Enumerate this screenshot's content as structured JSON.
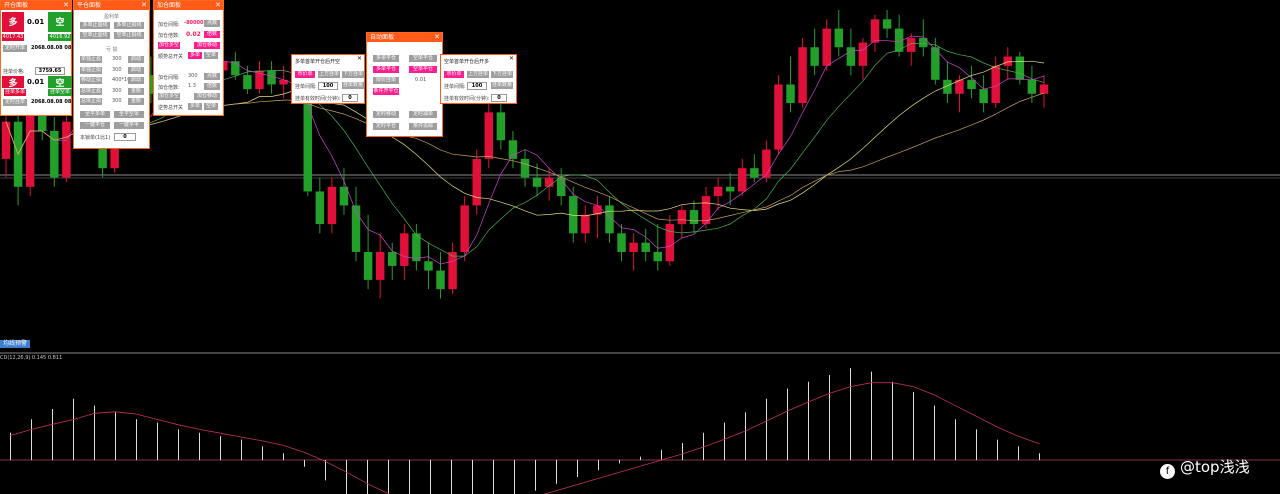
{
  "colors": {
    "up": "#e0103a",
    "down": "#22a02a",
    "accent": "#ff5a1a",
    "pink": "#ff1e8e",
    "gray": "#9e9e9e"
  },
  "panel1": {
    "title": "开仓面板",
    "buy_label": "多",
    "sell_label": "空",
    "lots": "0.01",
    "buy_price": "4017.43",
    "sell_price": "4016.92",
    "time_btn": "定时开单",
    "time_value": "2068.08.08 08:08",
    "price_label": "挂单价格:",
    "price_value": "3759.65",
    "buy2": "多",
    "sell2": "空",
    "lots2": "0.01",
    "pend_buy": "挂单多单",
    "pend_sell": "挂单空单",
    "time_btn2": "定时挂单",
    "time_value2": "2068.08.08 08:08"
  },
  "panel2": {
    "title": "平仓面板",
    "grp1": "盈利单",
    "r1": [
      "多单止盈线",
      "多单止损线"
    ],
    "r2": [
      "空单止盈线",
      "空单止损线"
    ],
    "grp2": "亏 损",
    "rows": [
      {
        "l": "单独止盈",
        "v": "300",
        "r": "启动"
      },
      {
        "l": "单独止损",
        "v": "300",
        "r": "启动"
      },
      {
        "l": "移动止损",
        "v": "400*100",
        "r": "启动"
      },
      {
        "l": "总体止盈",
        "v": "300",
        "r": "金额"
      },
      {
        "l": "总体止损",
        "v": "300",
        "r": "金额"
      }
    ],
    "close_buy": "全平多单",
    "close_sell": "全平空单",
    "close_all": "一键平仓",
    "close_half": "一键平半",
    "lock_label": "本锁单(1比1)",
    "lock_value": "0"
  },
  "panel3": {
    "title": "加仓面板",
    "rows": [
      {
        "l": "加仓间隔:",
        "v": "-80000",
        "r": "点数"
      },
      {
        "l": "加仓倍数:",
        "v": "0.02",
        "r": "倍数"
      }
    ],
    "add_btn": "加仓多空",
    "pause_btn": "加仓移动",
    "hedge_label": "顺势总开关",
    "long": "多单",
    "short": "空单",
    "rows2": [
      {
        "l": "加仓间隔:",
        "v": "300",
        "r": "点数"
      },
      {
        "l": "加仓倍数:",
        "v": "1.3",
        "r": "倍数"
      }
    ],
    "btn3": "加仓多空",
    "btn4": "加仓移动",
    "trend_label": "逆势总开关",
    "long2": "多单",
    "short2": "空单"
  },
  "panel4": {
    "title": "自动面板",
    "b1": "多单平仓",
    "b2": "空单平仓",
    "b3": "多单平仓",
    "b4": "空单平仓",
    "b5": "限价挂单",
    "v5": "0.01",
    "b6": "条件开平仓",
    "b7": "定时移动",
    "b8": "定时减单",
    "b9": "定时平仓",
    "b10": "条件追踪"
  },
  "panel5": {
    "title_row": "多单首单开仓后开空",
    "tabs": [
      "市价单",
      "上方挂单",
      "下方挂单"
    ],
    "gap_label": "挂单间隔:",
    "gap_value": "100",
    "gap_btn": "挂单数量",
    "time_label": "挂单有效时间(分钟):",
    "time_value": "0"
  },
  "panel6": {
    "title_row": "空单首单开仓后开多",
    "tabs": [
      "市价单",
      "上方挂单",
      "下方挂单"
    ],
    "gap_label": "挂单间隔:",
    "gap_value": "100",
    "gap_btn": "挂单数量",
    "time_label": "挂单有效时间(分钟):",
    "time_value": "0"
  },
  "status_tag": "均线预警",
  "indicator_label": "CD(12,26,9) 0.145 0.811",
  "watermark": "@top浅浅",
  "chart_data": {
    "type": "candlestick",
    "price_range": [
      3700,
      4060
    ],
    "candles": [
      [
        3900,
        3960,
        3880,
        3940
      ],
      [
        3940,
        3950,
        3850,
        3870
      ],
      [
        3870,
        3990,
        3860,
        3980
      ],
      [
        3980,
        3995,
        3920,
        3930
      ],
      [
        3930,
        3945,
        3870,
        3880
      ],
      [
        3880,
        3950,
        3875,
        3940
      ],
      [
        3940,
        3980,
        3930,
        3970
      ],
      [
        3970,
        3985,
        3925,
        3940
      ],
      [
        3940,
        3955,
        3880,
        3890
      ],
      [
        3890,
        3960,
        3885,
        3950
      ],
      [
        3950,
        3960,
        3920,
        3930
      ],
      [
        3930,
        4000,
        3925,
        3990
      ],
      [
        3990,
        4010,
        3960,
        3970
      ],
      [
        3970,
        3995,
        3950,
        3985
      ],
      [
        3985,
        4010,
        3970,
        4000
      ],
      [
        4000,
        4025,
        3990,
        4015
      ],
      [
        4015,
        4030,
        4000,
        4010
      ],
      [
        4010,
        4025,
        3990,
        3995
      ],
      [
        3995,
        4010,
        3975,
        4005
      ],
      [
        4005,
        4015,
        3985,
        3990
      ],
      [
        3990,
        4000,
        3970,
        3975
      ],
      [
        3975,
        4005,
        3970,
        3995
      ],
      [
        3995,
        4005,
        3970,
        3980
      ],
      [
        3980,
        4000,
        3965,
        3985
      ],
      [
        3985,
        3995,
        3960,
        3965
      ],
      [
        3965,
        3975,
        3860,
        3865
      ],
      [
        3865,
        3880,
        3820,
        3830
      ],
      [
        3830,
        3880,
        3820,
        3870
      ],
      [
        3870,
        3890,
        3840,
        3850
      ],
      [
        3850,
        3870,
        3790,
        3800
      ],
      [
        3800,
        3840,
        3760,
        3770
      ],
      [
        3770,
        3820,
        3750,
        3800
      ],
      [
        3800,
        3810,
        3770,
        3785
      ],
      [
        3785,
        3830,
        3770,
        3820
      ],
      [
        3820,
        3830,
        3780,
        3790
      ],
      [
        3790,
        3810,
        3760,
        3780
      ],
      [
        3780,
        3800,
        3750,
        3760
      ],
      [
        3760,
        3810,
        3755,
        3800
      ],
      [
        3800,
        3860,
        3790,
        3850
      ],
      [
        3850,
        3910,
        3840,
        3900
      ],
      [
        3900,
        3960,
        3890,
        3950
      ],
      [
        3950,
        3960,
        3910,
        3920
      ],
      [
        3920,
        3930,
        3890,
        3900
      ],
      [
        3900,
        3910,
        3870,
        3880
      ],
      [
        3880,
        3895,
        3860,
        3870
      ],
      [
        3870,
        3890,
        3855,
        3880
      ],
      [
        3880,
        3890,
        3850,
        3860
      ],
      [
        3860,
        3870,
        3810,
        3820
      ],
      [
        3820,
        3850,
        3810,
        3840
      ],
      [
        3840,
        3860,
        3815,
        3850
      ],
      [
        3850,
        3860,
        3810,
        3820
      ],
      [
        3820,
        3830,
        3790,
        3800
      ],
      [
        3800,
        3820,
        3780,
        3810
      ],
      [
        3810,
        3825,
        3790,
        3800
      ],
      [
        3800,
        3830,
        3780,
        3790
      ],
      [
        3790,
        3840,
        3785,
        3830
      ],
      [
        3830,
        3850,
        3815,
        3845
      ],
      [
        3845,
        3855,
        3820,
        3830
      ],
      [
        3830,
        3870,
        3825,
        3860
      ],
      [
        3860,
        3880,
        3845,
        3870
      ],
      [
        3870,
        3885,
        3850,
        3865
      ],
      [
        3865,
        3900,
        3860,
        3890
      ],
      [
        3890,
        3905,
        3875,
        3880
      ],
      [
        3880,
        3920,
        3875,
        3910
      ],
      [
        3910,
        3990,
        3905,
        3980
      ],
      [
        3980,
        4010,
        3950,
        3960
      ],
      [
        3960,
        4030,
        3955,
        4020
      ],
      [
        4020,
        4040,
        3990,
        4000
      ],
      [
        4000,
        4050,
        3995,
        4040
      ],
      [
        4040,
        4060,
        4010,
        4020
      ],
      [
        4020,
        4040,
        3990,
        4000
      ],
      [
        4000,
        4030,
        3985,
        4025
      ],
      [
        4025,
        4055,
        4015,
        4050
      ],
      [
        4050,
        4060,
        4030,
        4040
      ],
      [
        4040,
        4055,
        4010,
        4015
      ],
      [
        4015,
        4035,
        4000,
        4030
      ],
      [
        4030,
        4050,
        4010,
        4020
      ],
      [
        4020,
        4030,
        3980,
        3985
      ],
      [
        3985,
        4005,
        3960,
        3970
      ],
      [
        3970,
        3990,
        3950,
        3985
      ],
      [
        3985,
        4000,
        3965,
        3975
      ],
      [
        3975,
        3990,
        3950,
        3960
      ],
      [
        3960,
        4010,
        3955,
        4000
      ],
      [
        4000,
        4020,
        3985,
        4010
      ],
      [
        4010,
        4015,
        3980,
        3985
      ],
      [
        3985,
        4000,
        3960,
        3970
      ],
      [
        3970,
        3990,
        3955,
        3980
      ]
    ],
    "macd_hist": [
      0.8,
      1.2,
      1.5,
      1.8,
      1.6,
      1.4,
      1.2,
      1.1,
      0.9,
      0.8,
      0.7,
      0.6,
      0.4,
      0.2,
      -0.2,
      -0.6,
      -1.0,
      -1.3,
      -1.5,
      -1.6,
      -1.7,
      -1.6,
      -1.5,
      -1.3,
      -1.1,
      -0.9,
      -0.7,
      -0.5,
      -0.3,
      -0.1,
      0.1,
      0.3,
      0.5,
      0.8,
      1.1,
      1.4,
      1.8,
      2.1,
      2.3,
      2.5,
      2.7,
      2.6,
      2.3,
      2.0,
      1.6,
      1.2,
      0.9,
      0.6,
      0.4,
      0.2
    ]
  }
}
